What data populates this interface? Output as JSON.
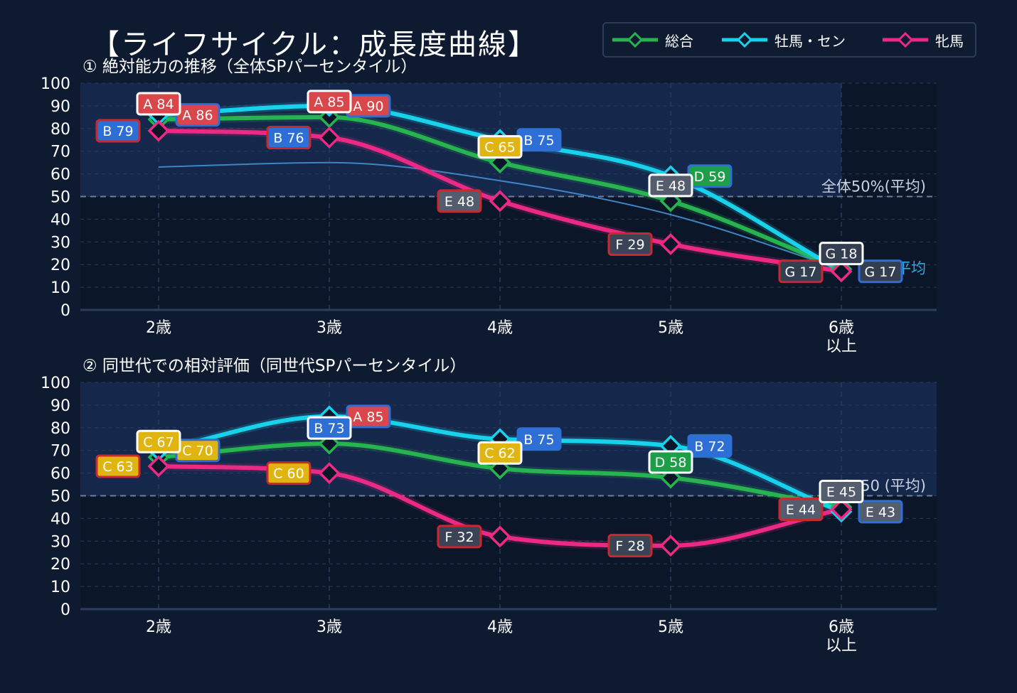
{
  "title": "【ライフサイクル：成長度曲線】",
  "colors": {
    "background": "#0e1a2f",
    "plot_area": "#0b1628",
    "highlight_band": "#15274a",
    "grid": "#2a3b58",
    "text": "#ffffff",
    "reference": "#c8d2e4",
    "avg_line": "#3d86c6",
    "avg_label": "#2fa8e0",
    "series": [
      "#27b34f",
      "#18d2ec",
      "#ec2a86"
    ],
    "grade": {
      "A": {
        "fill": "#d9474a",
        "border": "#f26063"
      },
      "B": {
        "fill": "#2e6fd6",
        "border": "#4d8df0"
      },
      "C": {
        "fill": "#e0b512",
        "border": "#f5cf2c"
      },
      "D": {
        "fill": "#1d9e48",
        "border": "#2fc75c"
      },
      "E": {
        "fill": "#545d6d",
        "border": "#757f90"
      },
      "F": {
        "fill": "#3a4456",
        "border": "#5a6579"
      },
      "G": {
        "fill": "#333e50",
        "border": "#525d70"
      }
    },
    "label_border_per_series": [
      "#ffffff",
      "#2e6fd6",
      "#c8282e"
    ]
  },
  "legend": {
    "entries": [
      {
        "label": "総合",
        "icon": "line-diamond-marker"
      },
      {
        "label": "牡馬・セン",
        "icon": "line-diamond-marker"
      },
      {
        "label": "牝馬",
        "icon": "line-diamond-marker"
      }
    ]
  },
  "chart_data": [
    {
      "type": "line",
      "title": "① 絶対能力の推移（全体SPパーセンタイル）",
      "categories": [
        "2歳",
        "3歳",
        "4歳",
        "5歳",
        "6歳\n以上"
      ],
      "ylim": [
        0,
        100
      ],
      "yticks": [
        0,
        10,
        20,
        30,
        40,
        50,
        60,
        70,
        80,
        90,
        100
      ],
      "grid": true,
      "highlight_band_categories": [
        0,
        4
      ],
      "reference_line": {
        "y": 50,
        "label": "全体50%(平均)"
      },
      "average_line": {
        "label": "全体平均",
        "values": [
          63,
          65,
          57,
          42,
          18
        ]
      },
      "series": [
        {
          "name": "総合",
          "values": [
            84,
            85,
            65,
            48,
            18
          ],
          "labels": [
            "A 84",
            "A 85",
            "C 65",
            "E 48",
            "G 18"
          ]
        },
        {
          "name": "牡馬・セン",
          "values": [
            86,
            90,
            75,
            59,
            17
          ],
          "labels": [
            "A 86",
            "A 90",
            "B 75",
            "D 59",
            "G 17"
          ]
        },
        {
          "name": "牝馬",
          "values": [
            79,
            76,
            48,
            29,
            17
          ],
          "labels": [
            "B 79",
            "B 76",
            "E 48",
            "F 29",
            "G 17"
          ]
        }
      ]
    },
    {
      "type": "line",
      "title": "② 同世代での相対評価（同世代SPパーセンタイル）",
      "categories": [
        "2歳",
        "3歳",
        "4歳",
        "5歳",
        "6歳\n以上"
      ],
      "ylim": [
        0,
        100
      ],
      "yticks": [
        0,
        10,
        20,
        30,
        40,
        50,
        60,
        70,
        80,
        90,
        100
      ],
      "grid": true,
      "highlight_band_categories": [
        0,
        5
      ],
      "reference_line": {
        "y": 50,
        "label": "SP50 (平均)"
      },
      "series": [
        {
          "name": "総合",
          "values": [
            67,
            73,
            62,
            58,
            45
          ],
          "labels": [
            "C 67",
            "B 73",
            "C 62",
            "D 58",
            "E 45"
          ]
        },
        {
          "name": "牡馬・セン",
          "values": [
            70,
            85,
            75,
            72,
            43
          ],
          "labels": [
            "C 70",
            "A 85",
            "B 75",
            "B 72",
            "E 43"
          ]
        },
        {
          "name": "牝馬",
          "values": [
            63,
            60,
            32,
            28,
            44
          ],
          "labels": [
            "C 63",
            "C 60",
            "F 32",
            "F 28",
            "E 44"
          ]
        }
      ]
    }
  ]
}
